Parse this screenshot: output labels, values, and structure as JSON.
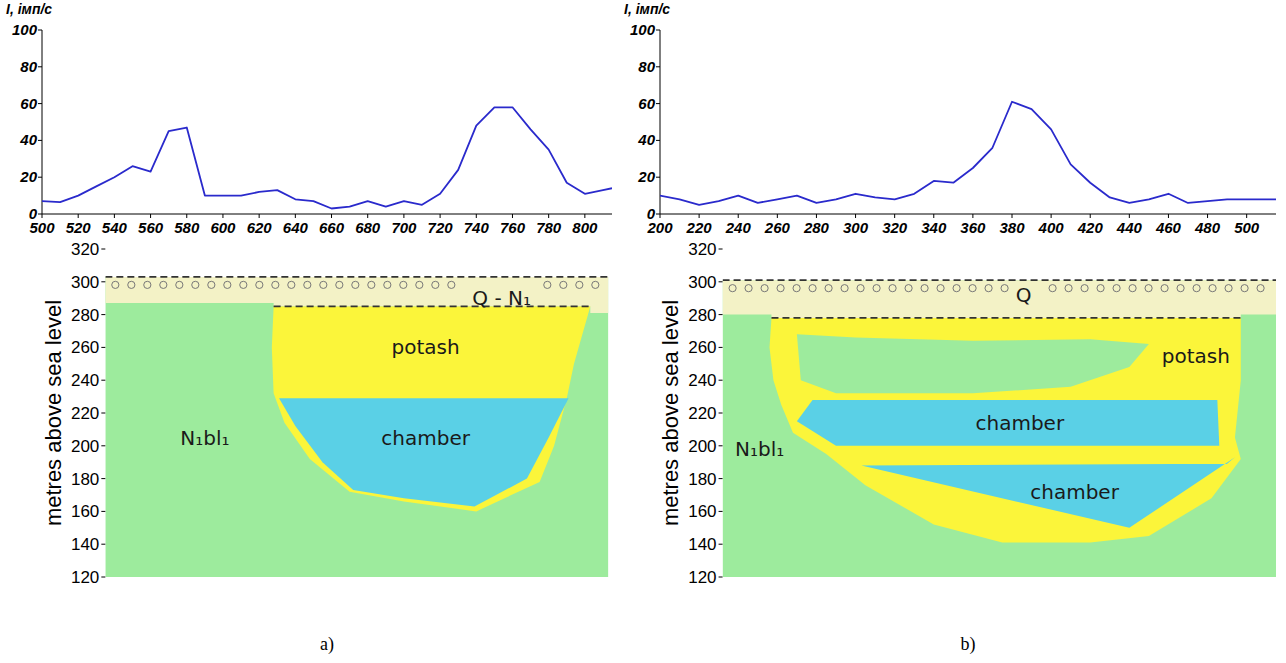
{
  "panel_labels": [
    "a)",
    "b)"
  ],
  "chart_data": [
    {
      "type": "line",
      "ylabel": "I, імп/с",
      "color": "#2a2acc",
      "x": [
        500,
        510,
        520,
        530,
        540,
        550,
        560,
        570,
        580,
        590,
        600,
        610,
        620,
        630,
        640,
        650,
        660,
        670,
        680,
        690,
        700,
        710,
        720,
        730,
        740,
        750,
        760,
        770,
        780,
        790,
        800,
        810,
        815
      ],
      "values": [
        7,
        6.5,
        10,
        15,
        20,
        26,
        23,
        45,
        47,
        10,
        10,
        10,
        12,
        13,
        8,
        7,
        3,
        4,
        7,
        4,
        7,
        5,
        11,
        24,
        48,
        58,
        58,
        46,
        35,
        17,
        11,
        13,
        14
      ],
      "xlim": [
        500,
        815
      ],
      "ylim": [
        0,
        100
      ],
      "xticks": [
        500,
        520,
        540,
        560,
        580,
        600,
        620,
        640,
        660,
        680,
        700,
        720,
        740,
        760,
        780,
        800
      ],
      "yticks": [
        0,
        20,
        40,
        60,
        80,
        100
      ]
    },
    {
      "type": "section",
      "ylabel": "metres above sea level",
      "xlim": [
        535,
        813
      ],
      "ylim": [
        120,
        320
      ],
      "yticks": [
        120,
        140,
        160,
        180,
        200,
        220,
        240,
        260,
        280,
        300,
        320
      ],
      "tick_labels": "y",
      "layers": [
        {
          "color": "#9deb9d",
          "polygon": [
            [
              535,
              120
            ],
            [
              813,
              120
            ],
            [
              813,
              303
            ],
            [
              535,
              303
            ]
          ],
          "label": "N₁bl₁",
          "label_x": 590,
          "label_y": 205
        },
        {
          "color": "#f3f2c6",
          "line_style": "dashed",
          "marker": "circle",
          "polygon": [
            [
              535,
              303
            ],
            [
              813,
              303
            ],
            [
              813,
              281
            ],
            [
              803,
              281
            ],
            [
              803,
              285
            ],
            [
              628,
              285
            ],
            [
              628,
              287
            ],
            [
              535,
              287
            ]
          ],
          "label": "Q - N₁",
          "label_x": 754,
          "label_y": 290
        },
        {
          "color": "#fbf53a",
          "line_style": "dashed",
          "polygon": [
            [
              628,
              285
            ],
            [
              803,
              285
            ],
            [
              794,
              250
            ],
            [
              790,
              229
            ],
            [
              783,
              200
            ],
            [
              775,
              178
            ],
            [
              740,
              160
            ],
            [
              700,
              166
            ],
            [
              670,
              172
            ],
            [
              648,
              192
            ],
            [
              634,
              214
            ],
            [
              628,
              232
            ],
            [
              627,
              260
            ]
          ],
          "label": "potash",
          "label_x": 712,
          "label_y": 260
        },
        {
          "color": "#5ad0e6",
          "polygon": [
            [
              631,
              229
            ],
            [
              791,
              229
            ],
            [
              780,
              205
            ],
            [
              768,
              180
            ],
            [
              739,
              163
            ],
            [
              700,
              168
            ],
            [
              672,
              173
            ],
            [
              655,
              190
            ],
            [
              640,
              212
            ]
          ],
          "label": "chamber",
          "label_x": 712,
          "label_y": 205
        }
      ]
    },
    {
      "type": "line",
      "ylabel": "I, імп/с",
      "color": "#2a2acc",
      "x": [
        200,
        210,
        220,
        230,
        240,
        250,
        260,
        270,
        280,
        290,
        300,
        310,
        320,
        330,
        340,
        350,
        360,
        370,
        380,
        390,
        400,
        410,
        420,
        430,
        440,
        450,
        460,
        470,
        480,
        490,
        500,
        510,
        515
      ],
      "values": [
        10,
        8,
        5,
        7,
        10,
        6,
        8,
        10,
        6,
        8,
        11,
        9,
        8,
        11,
        18,
        17,
        25,
        36,
        61,
        57,
        46,
        27,
        17,
        9,
        6,
        8,
        11,
        6,
        7,
        8,
        8,
        8,
        8
      ],
      "xlim": [
        200,
        515
      ],
      "ylim": [
        0,
        100
      ],
      "xticks": [
        200,
        220,
        240,
        260,
        280,
        300,
        320,
        340,
        360,
        380,
        400,
        420,
        440,
        460,
        480,
        500
      ],
      "yticks": [
        0,
        20,
        40,
        60,
        80,
        100
      ]
    },
    {
      "type": "section",
      "ylabel": "metres above sea level",
      "xlim": [
        232,
        515
      ],
      "ylim": [
        120,
        320
      ],
      "yticks": [
        120,
        140,
        160,
        180,
        200,
        220,
        240,
        260,
        280,
        300,
        320
      ],
      "tick_labels": "y",
      "layers": [
        {
          "color": "#9deb9d",
          "polygon": [
            [
              232,
              120
            ],
            [
              515,
              120
            ],
            [
              515,
              301
            ],
            [
              232,
              301
            ]
          ],
          "label": "N₁bl₁",
          "label_x": 251,
          "label_y": 198
        },
        {
          "color": "#f3f2c6",
          "line_style": "dashed",
          "marker": "circle",
          "polygon": [
            [
              232,
              301
            ],
            [
              515,
              301
            ],
            [
              515,
              280
            ],
            [
              497,
              280
            ],
            [
              497,
              278
            ],
            [
              257,
              278
            ],
            [
              257,
              280
            ],
            [
              232,
              280
            ]
          ],
          "label": "Q",
          "label_x": 386,
          "label_y": 292
        },
        {
          "color": "#fbf53a",
          "line_style": "dashed",
          "polygon": [
            [
              257,
              278
            ],
            [
              497,
              278
            ],
            [
              497,
              240
            ],
            [
              494,
              205
            ],
            [
              497,
              192
            ],
            [
              482,
              168
            ],
            [
              450,
              145
            ],
            [
              420,
              141
            ],
            [
              375,
              141
            ],
            [
              340,
              152
            ],
            [
              305,
              176
            ],
            [
              285,
              195
            ],
            [
              268,
              208
            ],
            [
              262,
              225
            ],
            [
              258,
              240
            ],
            [
              256,
              260
            ]
          ],
          "label": "potash",
          "label_x": 474,
          "label_y": 255
        },
        {
          "color": "#9deb9d",
          "polygon": [
            [
              270,
              268
            ],
            [
              300,
              266
            ],
            [
              360,
              264
            ],
            [
              420,
              265
            ],
            [
              450,
              262
            ],
            [
              440,
              248
            ],
            [
              410,
              236
            ],
            [
              360,
              232
            ],
            [
              290,
              232
            ],
            [
              272,
              240
            ]
          ]
        },
        {
          "color": "#5ad0e6",
          "polygon": [
            [
              278,
              228
            ],
            [
              485,
              228
            ],
            [
              486,
              200
            ],
            [
              290,
              200
            ],
            [
              270,
              215
            ]
          ],
          "label": "chamber",
          "label_x": 384,
          "label_y": 214
        },
        {
          "color": "#5ad0e6",
          "polygon": [
            [
              303,
              188
            ],
            [
              490,
              189
            ],
            [
              494,
              193
            ],
            [
              440,
              150
            ]
          ],
          "label": "chamber",
          "label_x": 412,
          "label_y": 172
        }
      ]
    }
  ]
}
